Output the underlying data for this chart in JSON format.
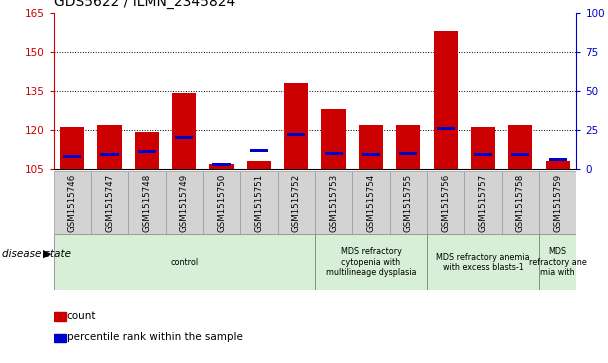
{
  "title": "GDS5622 / ILMN_2345824",
  "samples": [
    "GSM1515746",
    "GSM1515747",
    "GSM1515748",
    "GSM1515749",
    "GSM1515750",
    "GSM1515751",
    "GSM1515752",
    "GSM1515753",
    "GSM1515754",
    "GSM1515755",
    "GSM1515756",
    "GSM1515757",
    "GSM1515758",
    "GSM1515759"
  ],
  "count_values": [
    121,
    122,
    119,
    134,
    107,
    108,
    138,
    128,
    122,
    122,
    158,
    121,
    122,
    108
  ],
  "percentile_values": [
    8,
    9,
    11,
    20,
    3,
    12,
    22,
    10,
    9,
    10,
    26,
    9,
    9,
    6
  ],
  "ylim_left": [
    105,
    165
  ],
  "ylim_right": [
    0,
    100
  ],
  "yticks_left": [
    105,
    120,
    135,
    150,
    165
  ],
  "yticks_right": [
    0,
    25,
    50,
    75,
    100
  ],
  "bar_color": "#cc0000",
  "percentile_color": "#0000cc",
  "bar_width": 0.65,
  "disease_groups": [
    {
      "label": "control",
      "start": 0,
      "end": 7,
      "color": "#d6efd6"
    },
    {
      "label": "MDS refractory\ncytopenia with\nmultilineage dysplasia",
      "start": 7,
      "end": 10,
      "color": "#d6efd6"
    },
    {
      "label": "MDS refractory anemia\nwith excess blasts-1",
      "start": 10,
      "end": 13,
      "color": "#d6efd6"
    },
    {
      "label": "MDS\nrefractory ane\nmia with",
      "start": 13,
      "end": 14,
      "color": "#d6efd6"
    }
  ],
  "disease_state_label": "disease state",
  "legend_items": [
    {
      "label": "count",
      "color": "#cc0000"
    },
    {
      "label": "percentile rank within the sample",
      "color": "#0000cc"
    }
  ],
  "tick_bg_color": "#d3d3d3",
  "tick_border_color": "#999999"
}
